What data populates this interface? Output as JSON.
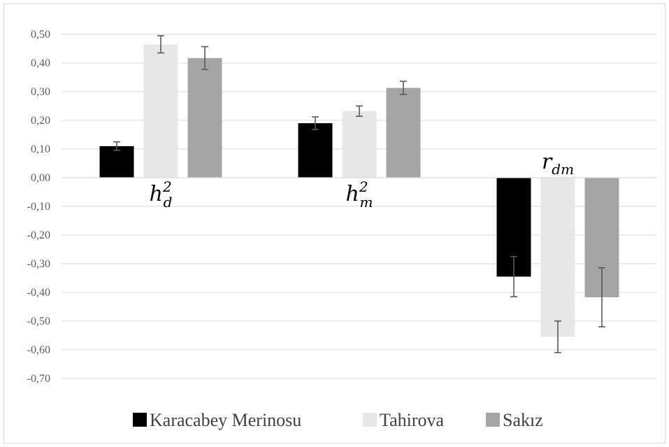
{
  "chart_data": {
    "type": "bar",
    "categories": [
      {
        "base": "h",
        "sup": "2",
        "sub": "d"
      },
      {
        "base": "h",
        "sup": "2",
        "sub": "m"
      },
      {
        "base": "r",
        "sup": "",
        "sub": "dm"
      }
    ],
    "series": [
      {
        "name": "Karacabey Merinosu",
        "color": "#000000",
        "values": [
          0.11,
          0.19,
          -0.345
        ],
        "errors": [
          0.015,
          0.022,
          0.07
        ]
      },
      {
        "name": "Tahirova",
        "color": "#e7e7e7",
        "values": [
          0.465,
          0.232,
          -0.555
        ],
        "errors": [
          0.03,
          0.018,
          0.055
        ]
      },
      {
        "name": "Sakız",
        "color": "#a5a5a5",
        "values": [
          0.417,
          0.313,
          -0.417
        ],
        "errors": [
          0.04,
          0.023,
          0.103
        ]
      }
    ],
    "ylim": [
      -0.7,
      0.5
    ],
    "yticks": [
      "0,50",
      "0,40",
      "0,30",
      "0,20",
      "0,10",
      "0,00",
      "-0,10",
      "-0,20",
      "-0,30",
      "-0,40",
      "-0,50",
      "-0,60",
      "-0,70"
    ],
    "grid": true,
    "legend_position": "bottom",
    "title": "",
    "xlabel": "",
    "ylabel": ""
  }
}
